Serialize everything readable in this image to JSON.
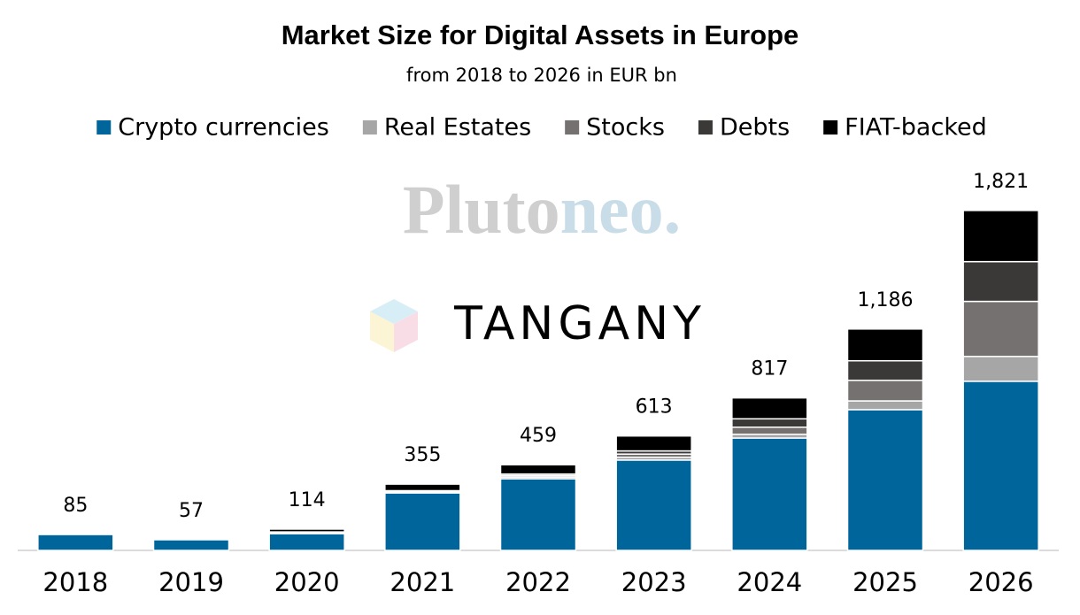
{
  "chart_data": {
    "type": "stacked-bar",
    "title": "Market Size for Digital Assets in Europe",
    "subtitle": "from 2018 to 2026 in EUR bn",
    "watermarks": [
      "Pluto",
      "neo.",
      "TANGANY"
    ],
    "categories": [
      "2018",
      "2019",
      "2020",
      "2021",
      "2022",
      "2023",
      "2024",
      "2025",
      "2026"
    ],
    "series": [
      {
        "name": "Crypto currencies",
        "color": "#00659a",
        "values": [
          85,
          57,
          90,
          308,
          384,
          484,
          602,
          754,
          906
        ]
      },
      {
        "name": "Real Estates",
        "color": "#a6a6a6",
        "values": [
          0,
          0,
          3,
          4,
          9,
          15,
          20,
          47,
          133
        ]
      },
      {
        "name": "Stocks",
        "color": "#767171",
        "values": [
          0,
          0,
          3,
          4,
          8,
          17,
          38,
          110,
          295
        ]
      },
      {
        "name": "Debts",
        "color": "#3b3838",
        "values": [
          0,
          0,
          3,
          4,
          8,
          17,
          45,
          105,
          213
        ]
      },
      {
        "name": "FIAT-backed",
        "color": "#000000",
        "values": [
          0,
          0,
          15,
          35,
          50,
          80,
          112,
          170,
          274
        ]
      }
    ],
    "totals": [
      85,
      57,
      114,
      355,
      459,
      613,
      817,
      1186,
      1821
    ],
    "total_labels": [
      "85",
      "57",
      "114",
      "355",
      "459",
      "613",
      "817",
      "1,186",
      "1,821"
    ],
    "ylim": [
      0,
      2100
    ]
  }
}
